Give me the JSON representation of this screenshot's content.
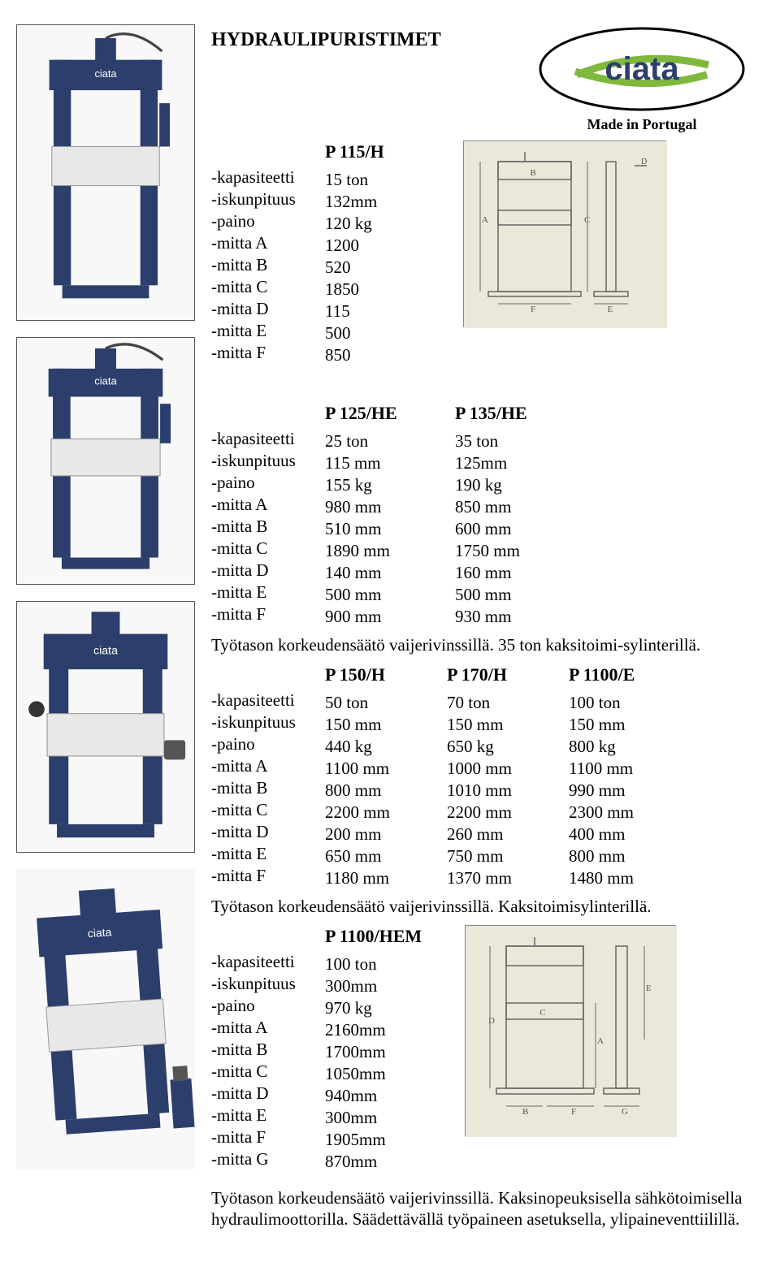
{
  "title": "HYDRAULIPURISTIMET",
  "brand": "ciata",
  "made_in": "Made in Portugal",
  "colors": {
    "press_body": "#2c3e6b",
    "press_work": "#e8e8e8",
    "diagram_bg": "#eae8d8",
    "diagram_line": "#666666"
  },
  "spec1": {
    "model": "P 115/H",
    "labels": [
      "-kapasiteetti",
      "-iskunpituus",
      "-paino",
      "-mitta A",
      "-mitta B",
      "-mitta C",
      "-mitta D",
      "-mitta E",
      "-mitta F"
    ],
    "values": [
      "15 ton",
      "132mm",
      "120 kg",
      "1200",
      "520",
      "1850",
      "115",
      "500",
      "850"
    ]
  },
  "spec2": {
    "labels": [
      "",
      "-kapasiteetti",
      "-iskunpituus",
      "-paino",
      "-mitta A",
      "-mitta B",
      "-mitta C",
      "-mitta D",
      "-mitta E",
      "-mitta F"
    ],
    "col1_header": "P 125/HE",
    "col1": [
      "25 ton",
      "115 mm",
      "155 kg",
      "980 mm",
      "510 mm",
      "1890 mm",
      "140 mm",
      "500 mm",
      "900 mm"
    ],
    "col2_header": "P 135/HE",
    "col2": [
      "35 ton",
      "125mm",
      "190 kg",
      "850 mm",
      "600 mm",
      "1750 mm",
      "160 mm",
      "500 mm",
      "930 mm"
    ]
  },
  "note2": "Työtason korkeudensäätö vaijerivinssillä. 35 ton kaksitoimi-sylinterillä.",
  "spec3": {
    "labels": [
      "",
      "-kapasiteetti",
      "-iskunpituus",
      "-paino",
      "-mitta A",
      "-mitta B",
      "-mitta C",
      "-mitta D",
      "-mitta E",
      "-mitta F"
    ],
    "col1_header": "P 150/H",
    "col1": [
      "50 ton",
      "150 mm",
      "440 kg",
      "1100 mm",
      "800 mm",
      "2200 mm",
      "200 mm",
      "650 mm",
      "1180 mm"
    ],
    "col2_header": "P 170/H",
    "col2": [
      "70 ton",
      "150 mm",
      "650 kg",
      "1000 mm",
      "1010 mm",
      "2200 mm",
      "260 mm",
      "750 mm",
      "1370 mm"
    ],
    "col3_header": "P 1100/E",
    "col3": [
      "100 ton",
      "150 mm",
      "800 kg",
      "1100 mm",
      "990 mm",
      "2300 mm",
      "400 mm",
      "800 mm",
      "1480 mm"
    ]
  },
  "note3": "Työtason korkeudensäätö vaijerivinssillä. Kaksitoimisylinterillä.",
  "spec4": {
    "model": "P 1100/HEM",
    "labels": [
      "-kapasiteetti",
      "-iskunpituus",
      "-paino",
      "-mitta A",
      "-mitta B",
      "-mitta C",
      "-mitta D",
      "-mitta E",
      "-mitta F",
      "-mitta G"
    ],
    "values": [
      "100 ton",
      "300mm",
      "970 kg",
      "2160mm",
      "1700mm",
      "1050mm",
      "940mm",
      "300mm",
      "1905mm",
      "870mm"
    ]
  },
  "note4": "Työtason korkeudensäätö vaijerivinssillä. Kaksinopeuksisella sähkötoimisella hydraulimoottorilla. Säädettävällä työpaineen asetuksella, ylipaineventtiilillä."
}
